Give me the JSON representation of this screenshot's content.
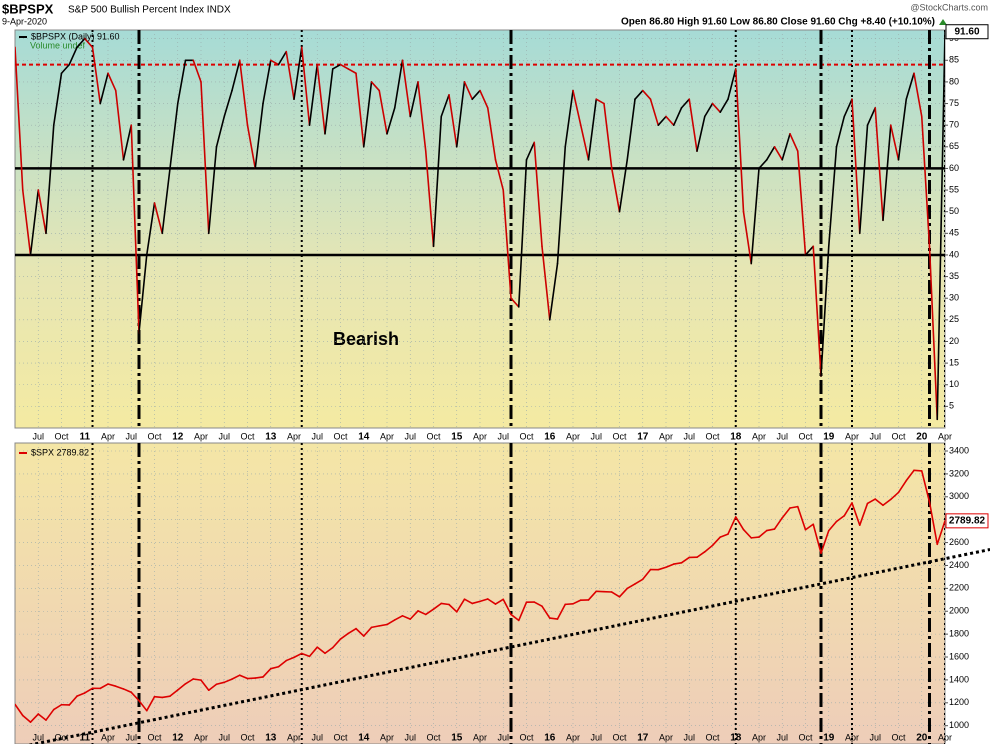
{
  "chart_data": [
    {
      "type": "line",
      "title": "$BPSPX",
      "subtitle": "S&P 500 Bullish Percent Index INDX",
      "date": "9-Apr-2020",
      "quote": "Open 86.80  High 91.60  Low 86.80  Close 91.60  Chg +8.40 (+10.10%)",
      "credit": "@StockCharts.com",
      "annotation": "Bearish",
      "legend_extra": "Volume undef",
      "x": [
        "2010-04",
        "2010-05",
        "2010-06",
        "2010-07",
        "2010-08",
        "2010-09",
        "2010-10",
        "2010-11",
        "2010-12",
        "2011-01",
        "2011-02",
        "2011-03",
        "2011-04",
        "2011-05",
        "2011-06",
        "2011-07",
        "2011-08",
        "2011-09",
        "2011-10",
        "2011-11",
        "2011-12",
        "2012-01",
        "2012-02",
        "2012-03",
        "2012-04",
        "2012-05",
        "2012-06",
        "2012-07",
        "2012-08",
        "2012-09",
        "2012-10",
        "2012-11",
        "2012-12",
        "2013-01",
        "2013-02",
        "2013-03",
        "2013-04",
        "2013-05",
        "2013-06",
        "2013-07",
        "2013-08",
        "2013-09",
        "2013-10",
        "2013-11",
        "2013-12",
        "2014-01",
        "2014-02",
        "2014-03",
        "2014-04",
        "2014-05",
        "2014-06",
        "2014-07",
        "2014-08",
        "2014-09",
        "2014-10",
        "2014-11",
        "2014-12",
        "2015-01",
        "2015-02",
        "2015-03",
        "2015-04",
        "2015-05",
        "2015-06",
        "2015-07",
        "2015-08",
        "2015-09",
        "2015-10",
        "2015-11",
        "2015-12",
        "2016-01",
        "2016-02",
        "2016-03",
        "2016-04",
        "2016-05",
        "2016-06",
        "2016-07",
        "2016-08",
        "2016-09",
        "2016-10",
        "2016-11",
        "2016-12",
        "2017-01",
        "2017-02",
        "2017-03",
        "2017-04",
        "2017-05",
        "2017-06",
        "2017-07",
        "2017-08",
        "2017-09",
        "2017-10",
        "2017-11",
        "2017-12",
        "2018-01",
        "2018-02",
        "2018-03",
        "2018-04",
        "2018-05",
        "2018-06",
        "2018-07",
        "2018-08",
        "2018-09",
        "2018-10",
        "2018-11",
        "2018-12",
        "2019-01",
        "2019-02",
        "2019-03",
        "2019-04",
        "2019-05",
        "2019-06",
        "2019-07",
        "2019-08",
        "2019-09",
        "2019-10",
        "2019-11",
        "2019-12",
        "2020-01",
        "2020-02",
        "2020-03",
        "2020-04"
      ],
      "xlim": [
        "2010-04",
        "2020-04"
      ],
      "xticks": [
        {
          "value": "2010-07",
          "label": "Jul"
        },
        {
          "value": "2010-10",
          "label": "Oct"
        },
        {
          "value": "2011-01",
          "label": "11"
        },
        {
          "value": "2011-04",
          "label": "Apr"
        },
        {
          "value": "2011-07",
          "label": "Jul"
        },
        {
          "value": "2011-10",
          "label": "Oct"
        },
        {
          "value": "2012-01",
          "label": "12"
        },
        {
          "value": "2012-04",
          "label": "Apr"
        },
        {
          "value": "2012-07",
          "label": "Jul"
        },
        {
          "value": "2012-10",
          "label": "Oct"
        },
        {
          "value": "2013-01",
          "label": "13"
        },
        {
          "value": "2013-04",
          "label": "Apr"
        },
        {
          "value": "2013-07",
          "label": "Jul"
        },
        {
          "value": "2013-10",
          "label": "Oct"
        },
        {
          "value": "2014-01",
          "label": "14"
        },
        {
          "value": "2014-04",
          "label": "Apr"
        },
        {
          "value": "2014-07",
          "label": "Jul"
        },
        {
          "value": "2014-10",
          "label": "Oct"
        },
        {
          "value": "2015-01",
          "label": "15"
        },
        {
          "value": "2015-04",
          "label": "Apr"
        },
        {
          "value": "2015-07",
          "label": "Jul"
        },
        {
          "value": "2015-10",
          "label": "Oct"
        },
        {
          "value": "2016-01",
          "label": "16"
        },
        {
          "value": "2016-04",
          "label": "Apr"
        },
        {
          "value": "2016-07",
          "label": "Jul"
        },
        {
          "value": "2016-10",
          "label": "Oct"
        },
        {
          "value": "2017-01",
          "label": "17"
        },
        {
          "value": "2017-04",
          "label": "Apr"
        },
        {
          "value": "2017-07",
          "label": "Jul"
        },
        {
          "value": "2017-10",
          "label": "Oct"
        },
        {
          "value": "2018-01",
          "label": "18"
        },
        {
          "value": "2018-04",
          "label": "Apr"
        },
        {
          "value": "2018-07",
          "label": "Jul"
        },
        {
          "value": "2018-10",
          "label": "Oct"
        },
        {
          "value": "2019-01",
          "label": "19"
        },
        {
          "value": "2019-04",
          "label": "Apr"
        },
        {
          "value": "2019-07",
          "label": "Jul"
        },
        {
          "value": "2019-10",
          "label": "Oct"
        },
        {
          "value": "2020-01",
          "label": "20"
        },
        {
          "value": "2020-04",
          "label": "Apr"
        }
      ],
      "ylim": [
        0,
        92
      ],
      "yticks": [
        5,
        10,
        15,
        20,
        25,
        30,
        35,
        40,
        45,
        50,
        55,
        60,
        65,
        70,
        75,
        80,
        85,
        90
      ],
      "grid": true,
      "series": [
        {
          "name": "$BPSPX (Daily) 91.60",
          "color": "#000000",
          "down_color": "#cc0000",
          "last_value_label": "91.60",
          "values": [
            88,
            55,
            40,
            55,
            45,
            70,
            82,
            84,
            88,
            90,
            88,
            75,
            82,
            78,
            62,
            70,
            22,
            40,
            52,
            45,
            60,
            75,
            85,
            85,
            80,
            45,
            65,
            72,
            78,
            85,
            70,
            60,
            75,
            85,
            84,
            87,
            76,
            88,
            70,
            84,
            68,
            83,
            84,
            83,
            82,
            65,
            80,
            78,
            68,
            74,
            85,
            72,
            80,
            64,
            42,
            72,
            77,
            65,
            80,
            76,
            78,
            74,
            62,
            55,
            30,
            28,
            62,
            66,
            42,
            25,
            38,
            65,
            78,
            70,
            62,
            76,
            75,
            60,
            50,
            62,
            76,
            78,
            76,
            70,
            72,
            70,
            74,
            76,
            64,
            72,
            75,
            73,
            76,
            83,
            50,
            38,
            60,
            62,
            65,
            62,
            68,
            64,
            40,
            42,
            12,
            42,
            65,
            72,
            76,
            45,
            70,
            74,
            48,
            70,
            62,
            76,
            82,
            72,
            42,
            2,
            91.6
          ]
        }
      ],
      "hlines": [
        {
          "value": 84,
          "color": "#dd0000",
          "style": "dashed"
        },
        {
          "value": 60,
          "color": "#000000",
          "style": "solid"
        },
        {
          "value": 40,
          "color": "#000000",
          "style": "solid"
        }
      ],
      "vlines": [
        {
          "x": "2011-02",
          "style": "dotted"
        },
        {
          "x": "2011-08",
          "style": "dashdot"
        },
        {
          "x": "2013-05",
          "style": "dotted"
        },
        {
          "x": "2015-08",
          "style": "dashdot"
        },
        {
          "x": "2018-01",
          "style": "dotted"
        },
        {
          "x": "2018-12",
          "style": "dashdot"
        },
        {
          "x": "2019-04",
          "style": "dotted"
        },
        {
          "x": "2020-02",
          "style": "dashdot"
        },
        {
          "x": "2020-04",
          "style": "dotted"
        }
      ]
    },
    {
      "type": "line",
      "x": [
        "2010-04",
        "2010-05",
        "2010-06",
        "2010-07",
        "2010-08",
        "2010-09",
        "2010-10",
        "2010-11",
        "2010-12",
        "2011-01",
        "2011-02",
        "2011-03",
        "2011-04",
        "2011-05",
        "2011-06",
        "2011-07",
        "2011-08",
        "2011-09",
        "2011-10",
        "2011-11",
        "2011-12",
        "2012-01",
        "2012-02",
        "2012-03",
        "2012-04",
        "2012-05",
        "2012-06",
        "2012-07",
        "2012-08",
        "2012-09",
        "2012-10",
        "2012-11",
        "2012-12",
        "2013-01",
        "2013-02",
        "2013-03",
        "2013-04",
        "2013-05",
        "2013-06",
        "2013-07",
        "2013-08",
        "2013-09",
        "2013-10",
        "2013-11",
        "2013-12",
        "2014-01",
        "2014-02",
        "2014-03",
        "2014-04",
        "2014-05",
        "2014-06",
        "2014-07",
        "2014-08",
        "2014-09",
        "2014-10",
        "2014-11",
        "2014-12",
        "2015-01",
        "2015-02",
        "2015-03",
        "2015-04",
        "2015-05",
        "2015-06",
        "2015-07",
        "2015-08",
        "2015-09",
        "2015-10",
        "2015-11",
        "2015-12",
        "2016-01",
        "2016-02",
        "2016-03",
        "2016-04",
        "2016-05",
        "2016-06",
        "2016-07",
        "2016-08",
        "2016-09",
        "2016-10",
        "2016-11",
        "2016-12",
        "2017-01",
        "2017-02",
        "2017-03",
        "2017-04",
        "2017-05",
        "2017-06",
        "2017-07",
        "2017-08",
        "2017-09",
        "2017-10",
        "2017-11",
        "2017-12",
        "2018-01",
        "2018-02",
        "2018-03",
        "2018-04",
        "2018-05",
        "2018-06",
        "2018-07",
        "2018-08",
        "2018-09",
        "2018-10",
        "2018-11",
        "2018-12",
        "2019-01",
        "2019-02",
        "2019-03",
        "2019-04",
        "2019-05",
        "2019-06",
        "2019-07",
        "2019-08",
        "2019-09",
        "2019-10",
        "2019-11",
        "2019-12",
        "2020-01",
        "2020-02",
        "2020-03",
        "2020-04"
      ],
      "xlim": [
        "2010-04",
        "2020-04"
      ],
      "xticks": [
        {
          "value": "2010-07",
          "label": "Jul"
        },
        {
          "value": "2010-10",
          "label": "Oct"
        },
        {
          "value": "2011-01",
          "label": "11"
        },
        {
          "value": "2011-04",
          "label": "Apr"
        },
        {
          "value": "2011-07",
          "label": "Jul"
        },
        {
          "value": "2011-10",
          "label": "Oct"
        },
        {
          "value": "2012-01",
          "label": "12"
        },
        {
          "value": "2012-04",
          "label": "Apr"
        },
        {
          "value": "2012-07",
          "label": "Jul"
        },
        {
          "value": "2012-10",
          "label": "Oct"
        },
        {
          "value": "2013-01",
          "label": "13"
        },
        {
          "value": "2013-04",
          "label": "Apr"
        },
        {
          "value": "2013-07",
          "label": "Jul"
        },
        {
          "value": "2013-10",
          "label": "Oct"
        },
        {
          "value": "2014-01",
          "label": "14"
        },
        {
          "value": "2014-04",
          "label": "Apr"
        },
        {
          "value": "2014-07",
          "label": "Jul"
        },
        {
          "value": "2014-10",
          "label": "Oct"
        },
        {
          "value": "2015-01",
          "label": "15"
        },
        {
          "value": "2015-04",
          "label": "Apr"
        },
        {
          "value": "2015-07",
          "label": "Jul"
        },
        {
          "value": "2015-10",
          "label": "Oct"
        },
        {
          "value": "2016-01",
          "label": "16"
        },
        {
          "value": "2016-04",
          "label": "Apr"
        },
        {
          "value": "2016-07",
          "label": "Jul"
        },
        {
          "value": "2016-10",
          "label": "Oct"
        },
        {
          "value": "2017-01",
          "label": "17"
        },
        {
          "value": "2017-04",
          "label": "Apr"
        },
        {
          "value": "2017-07",
          "label": "Jul"
        },
        {
          "value": "2017-10",
          "label": "Oct"
        },
        {
          "value": "2018-01",
          "label": "18"
        },
        {
          "value": "2018-04",
          "label": "Apr"
        },
        {
          "value": "2018-07",
          "label": "Jul"
        },
        {
          "value": "2018-10",
          "label": "Oct"
        },
        {
          "value": "2019-01",
          "label": "19"
        },
        {
          "value": "2019-04",
          "label": "Apr"
        },
        {
          "value": "2019-07",
          "label": "Jul"
        },
        {
          "value": "2019-10",
          "label": "Oct"
        },
        {
          "value": "2020-01",
          "label": "20"
        },
        {
          "value": "2020-04",
          "label": "Apr"
        }
      ],
      "ylim": [
        840,
        3470
      ],
      "yticks": [
        1000,
        1200,
        1400,
        1600,
        1800,
        2000,
        2200,
        2400,
        2600,
        2800,
        3000,
        3200,
        3400
      ],
      "grid": true,
      "series": [
        {
          "name": "$SPX 2789.82",
          "color": "#dd0000",
          "values": [
            1187,
            1089,
            1031,
            1102,
            1049,
            1141,
            1183,
            1181,
            1258,
            1286,
            1327,
            1326,
            1364,
            1345,
            1321,
            1292,
            1219,
            1131,
            1253,
            1247,
            1258,
            1312,
            1366,
            1408,
            1398,
            1310,
            1362,
            1379,
            1407,
            1441,
            1412,
            1416,
            1426,
            1498,
            1515,
            1569,
            1597,
            1631,
            1606,
            1686,
            1633,
            1682,
            1757,
            1806,
            1848,
            1783,
            1859,
            1872,
            1884,
            1924,
            1960,
            1931,
            2003,
            1972,
            2018,
            2068,
            2059,
            1995,
            2105,
            2068,
            2086,
            2107,
            2063,
            2104,
            1972,
            1920,
            2079,
            2080,
            2044,
            1940,
            1932,
            2060,
            2065,
            2097,
            2099,
            2174,
            2171,
            2168,
            2126,
            2199,
            2239,
            2279,
            2364,
            2363,
            2384,
            2412,
            2423,
            2470,
            2472,
            2519,
            2575,
            2648,
            2674,
            2824,
            2714,
            2641,
            2648,
            2705,
            2718,
            2816,
            2902,
            2914,
            2712,
            2760,
            2507,
            2704,
            2784,
            2834,
            2946,
            2752,
            2942,
            2980,
            2926,
            2977,
            3038,
            3141,
            3231,
            3226,
            2954,
            2585,
            2789.82
          ]
        }
      ],
      "trendline": {
        "points": [
          {
            "x": "2011-01",
            "y": 929
          },
          {
            "x": "2020-01",
            "y": 2418
          }
        ],
        "color": "#000000"
      },
      "vlines": [
        {
          "x": "2011-02",
          "style": "dotted"
        },
        {
          "x": "2011-08",
          "style": "dashdot"
        },
        {
          "x": "2013-05",
          "style": "dotted"
        },
        {
          "x": "2015-08",
          "style": "dashdot"
        },
        {
          "x": "2018-01",
          "style": "dotted"
        },
        {
          "x": "2018-12",
          "style": "dashdot"
        },
        {
          "x": "2019-04",
          "style": "dotted"
        },
        {
          "x": "2020-02",
          "style": "dashdot"
        },
        {
          "x": "2020-04",
          "style": "dotted"
        }
      ]
    }
  ]
}
